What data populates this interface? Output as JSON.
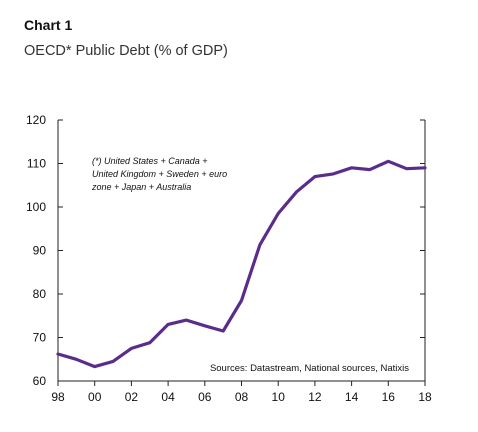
{
  "header": {
    "label": "Chart 1",
    "title": "OECD* Public Debt (% of GDP)"
  },
  "chart_data": {
    "type": "line",
    "title": "OECD* Public Debt (% of GDP)",
    "xlabel": "",
    "ylabel": "",
    "x": [
      1998,
      1999,
      2000,
      2001,
      2002,
      2003,
      2004,
      2005,
      2006,
      2007,
      2008,
      2009,
      2010,
      2011,
      2012,
      2013,
      2014,
      2015,
      2016,
      2017,
      2018
    ],
    "series": [
      {
        "values": [
          66.2,
          65.0,
          63.3,
          64.5,
          67.5,
          68.8,
          73.0,
          74.0,
          72.7,
          71.5,
          78.5,
          91.3,
          98.5,
          103.5,
          107.0,
          107.6,
          109.0,
          108.6,
          110.5,
          108.8,
          109.0
        ],
        "color": "#5b2d8a"
      }
    ],
    "xticks": [
      "98",
      "00",
      "02",
      "04",
      "06",
      "08",
      "10",
      "12",
      "14",
      "16",
      "18"
    ],
    "yticks": [
      "60",
      "70",
      "80",
      "90",
      "100",
      "110",
      "120"
    ],
    "ylim": [
      60,
      120
    ],
    "xlim": [
      1998,
      2018
    ],
    "grid": false,
    "annotations": {
      "note_lines": [
        "(*) United States + Canada +",
        "United Kingdom + Sweden + euro",
        "zone + Japan + Australia"
      ],
      "source": "Sources: Datastream, National sources, Natixis"
    }
  }
}
